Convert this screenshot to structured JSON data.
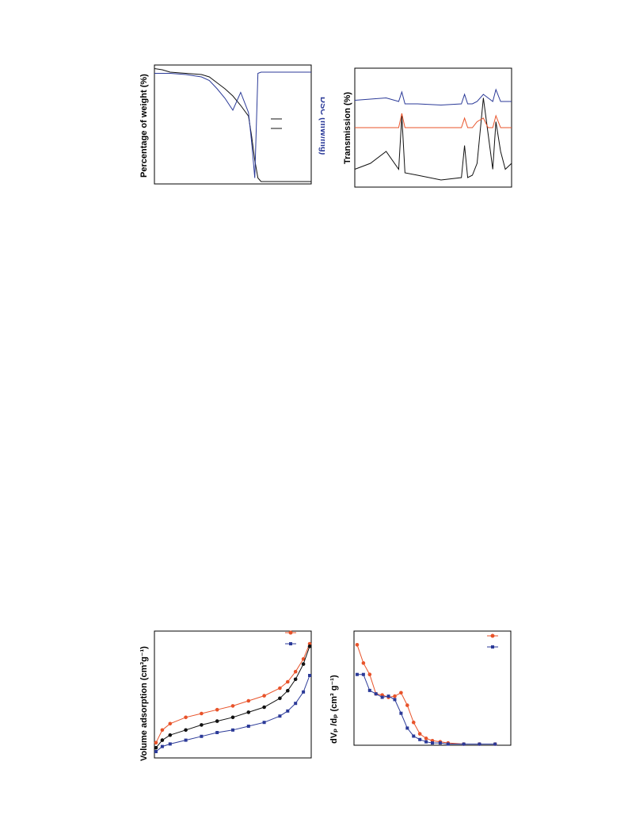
{
  "page": {
    "title": "",
    "panels": [
      {
        "id": "tga-dsc",
        "ylabel_left": "Percentage of weight (%)",
        "ylabel_right": "DSC (mW/mg)"
      },
      {
        "id": "ftir",
        "ylabel": "Transmission (%)"
      },
      {
        "id": "isotherm",
        "ylabel": "Volume adsorption (cm³g⁻¹)"
      },
      {
        "id": "pore-distribution",
        "ylabel": "dVₚ /dₚ (cm³ g⁻¹)"
      }
    ]
  },
  "colors": {
    "black": "#111111",
    "red": "#e8532a",
    "blue": "#2b3a98"
  },
  "chart_data": [
    {
      "type": "line",
      "title": "",
      "xlabel": "",
      "ylabel": "Percentage of weight (%)",
      "y2label": "DSC (mW/mg)",
      "orientation": "rotated-90",
      "x": [
        0,
        0.05,
        0.1,
        0.2,
        0.3,
        0.35,
        0.4,
        0.45,
        0.5,
        0.55,
        0.6,
        0.62,
        0.64,
        0.66,
        0.68,
        0.7,
        0.8,
        0.9,
        1.0
      ],
      "series": [
        {
          "name": "",
          "color": "black",
          "values": [
            0.97,
            0.96,
            0.94,
            0.93,
            0.92,
            0.9,
            0.85,
            0.8,
            0.74,
            0.66,
            0.57,
            0.4,
            0.2,
            0.05,
            0.02,
            0.02,
            0.02,
            0.02,
            0.02
          ]
        },
        {
          "name": "",
          "color": "blue",
          "values": [
            0.93,
            0.93,
            0.93,
            0.92,
            0.9,
            0.87,
            0.8,
            0.72,
            0.62,
            0.77,
            0.6,
            0.35,
            0.05,
            0.93,
            0.94,
            0.94,
            0.94,
            0.94,
            0.94
          ]
        }
      ]
    },
    {
      "type": "line",
      "title": "",
      "xlabel": "",
      "ylabel": "Transmission (%)",
      "orientation": "rotated-90",
      "x": [
        0,
        0.1,
        0.2,
        0.28,
        0.3,
        0.32,
        0.4,
        0.55,
        0.68,
        0.7,
        0.72,
        0.75,
        0.78,
        0.82,
        0.85,
        0.88,
        0.9,
        0.93,
        0.96,
        1.0
      ],
      "series": [
        {
          "name": "",
          "color": "black",
          "values": [
            0.15,
            0.2,
            0.3,
            0.15,
            0.6,
            0.12,
            0.1,
            0.06,
            0.08,
            0.35,
            0.08,
            0.1,
            0.2,
            0.75,
            0.45,
            0.15,
            0.55,
            0.3,
            0.15,
            0.2
          ]
        },
        {
          "name": "",
          "color": "red",
          "values": [
            0.5,
            0.5,
            0.5,
            0.5,
            0.62,
            0.5,
            0.5,
            0.5,
            0.5,
            0.58,
            0.5,
            0.5,
            0.55,
            0.58,
            0.5,
            0.5,
            0.6,
            0.5,
            0.5,
            0.5
          ]
        },
        {
          "name": "",
          "color": "blue",
          "values": [
            0.73,
            0.74,
            0.75,
            0.72,
            0.8,
            0.7,
            0.7,
            0.69,
            0.7,
            0.78,
            0.7,
            0.7,
            0.72,
            0.78,
            0.75,
            0.72,
            0.82,
            0.72,
            0.72,
            0.72
          ]
        }
      ]
    },
    {
      "type": "scatter",
      "title": "",
      "xlabel": "",
      "ylabel": "Volume adsorption (cm³g⁻¹)",
      "orientation": "rotated-90",
      "x": [
        0.01,
        0.05,
        0.1,
        0.2,
        0.3,
        0.4,
        0.5,
        0.6,
        0.7,
        0.8,
        0.85,
        0.9,
        0.95,
        0.99
      ],
      "series": [
        {
          "name": "",
          "color": "red",
          "values": [
            0.12,
            0.22,
            0.27,
            0.32,
            0.35,
            0.38,
            0.41,
            0.45,
            0.49,
            0.55,
            0.6,
            0.68,
            0.78,
            0.9
          ]
        },
        {
          "name": "",
          "color": "blue",
          "values": [
            0.05,
            0.09,
            0.11,
            0.14,
            0.17,
            0.2,
            0.22,
            0.25,
            0.28,
            0.33,
            0.37,
            0.43,
            0.52,
            0.65
          ]
        },
        {
          "name": "",
          "color": "black",
          "values": [
            0.08,
            0.14,
            0.18,
            0.22,
            0.26,
            0.29,
            0.32,
            0.36,
            0.4,
            0.47,
            0.53,
            0.62,
            0.74,
            0.88
          ]
        }
      ]
    },
    {
      "type": "line",
      "title": "",
      "xlabel": "",
      "ylabel": "dVₚ /dₚ (cm³ g⁻¹)",
      "orientation": "rotated-90",
      "x": [
        0.02,
        0.06,
        0.1,
        0.14,
        0.18,
        0.22,
        0.26,
        0.3,
        0.34,
        0.38,
        0.42,
        0.46,
        0.5,
        0.55,
        0.6,
        0.7,
        0.8,
        0.9
      ],
      "series": [
        {
          "name": "",
          "color": "red",
          "values": [
            0.88,
            0.72,
            0.62,
            0.45,
            0.44,
            0.42,
            0.43,
            0.46,
            0.35,
            0.2,
            0.1,
            0.06,
            0.04,
            0.03,
            0.02,
            0.01,
            0.01,
            0.01
          ]
        },
        {
          "name": "",
          "color": "blue",
          "values": [
            0.62,
            0.62,
            0.48,
            0.45,
            0.42,
            0.43,
            0.4,
            0.28,
            0.15,
            0.08,
            0.05,
            0.03,
            0.02,
            0.02,
            0.01,
            0.01,
            0.01,
            0.01
          ]
        }
      ]
    }
  ]
}
